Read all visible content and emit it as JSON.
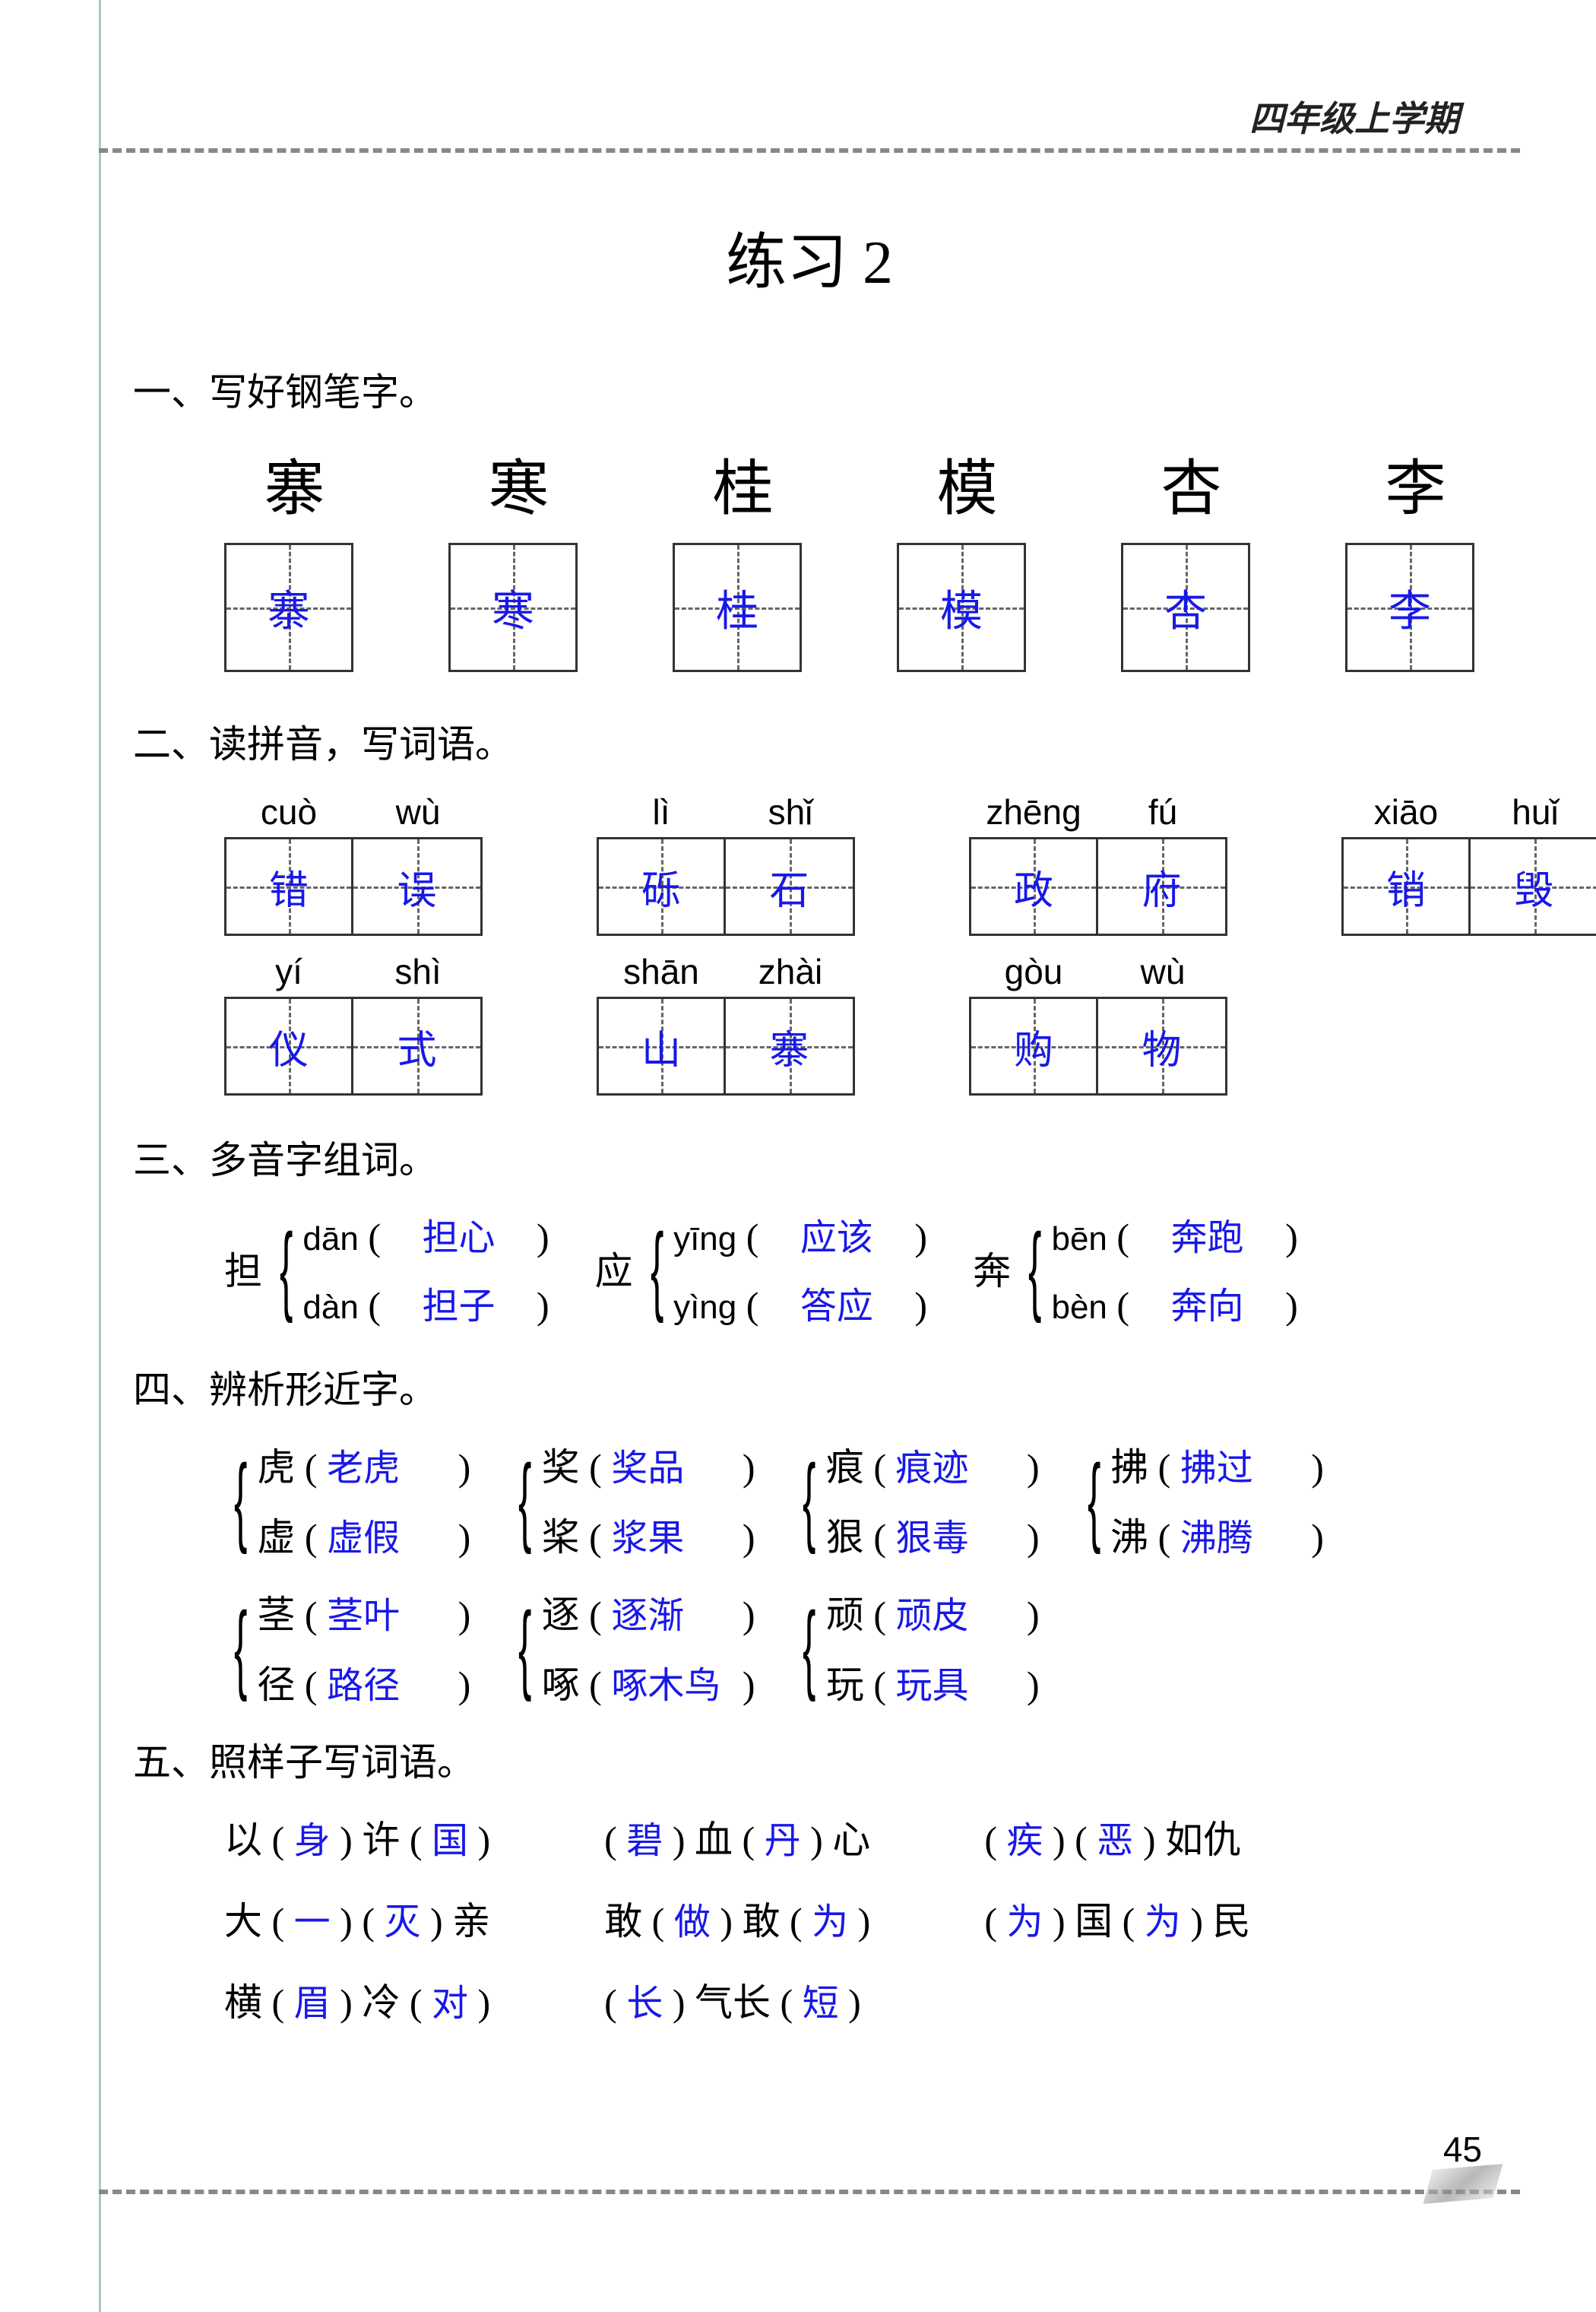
{
  "header": "四年级上学期",
  "title": "练习 2",
  "page_number": "45",
  "section1": {
    "heading": "一、写好钢笔字。",
    "items": [
      {
        "model": "寨",
        "answer": "寨"
      },
      {
        "model": "寒",
        "answer": "寒"
      },
      {
        "model": "桂",
        "answer": "桂"
      },
      {
        "model": "模",
        "answer": "模"
      },
      {
        "model": "杏",
        "answer": "杏"
      },
      {
        "model": "李",
        "answer": "李"
      }
    ]
  },
  "section2": {
    "heading": "二、读拼音，写词语。",
    "rows": [
      [
        {
          "pinyin": [
            "cuò",
            "wù"
          ],
          "chars": [
            "错",
            "误"
          ]
        },
        {
          "pinyin": [
            "lì",
            "shǐ"
          ],
          "chars": [
            "砾",
            "石"
          ]
        },
        {
          "pinyin": [
            "zhēng",
            "fú"
          ],
          "chars": [
            "政",
            "府"
          ]
        },
        {
          "pinyin": [
            "xiāo",
            "huǐ"
          ],
          "chars": [
            "销",
            "毁"
          ]
        }
      ],
      [
        {
          "pinyin": [
            "yí",
            "shì"
          ],
          "chars": [
            "仪",
            "式"
          ]
        },
        {
          "pinyin": [
            "shān",
            "zhài"
          ],
          "chars": [
            "山",
            "寨"
          ]
        },
        {
          "pinyin": [
            "gòu",
            "wù"
          ],
          "chars": [
            "购",
            "物"
          ]
        }
      ]
    ]
  },
  "section3": {
    "heading": "三、多音字组词。",
    "groups": [
      {
        "head": "担",
        "lines": [
          {
            "pinyin": "dān",
            "answer": "担心"
          },
          {
            "pinyin": "dàn",
            "answer": "担子"
          }
        ]
      },
      {
        "head": "应",
        "lines": [
          {
            "pinyin": "yīng",
            "answer": "应该"
          },
          {
            "pinyin": "yìng",
            "answer": "答应"
          }
        ]
      },
      {
        "head": "奔",
        "lines": [
          {
            "pinyin": "bēn",
            "answer": "奔跑"
          },
          {
            "pinyin": "bèn",
            "answer": "奔向"
          }
        ]
      }
    ]
  },
  "section4": {
    "heading": "四、辨析形近字。",
    "rows": [
      [
        {
          "lines": [
            {
              "char": "虎",
              "answer": "老虎"
            },
            {
              "char": "虚",
              "answer": "虚假"
            }
          ]
        },
        {
          "lines": [
            {
              "char": "奖",
              "answer": "奖品"
            },
            {
              "char": "桨",
              "answer": "浆果"
            }
          ]
        },
        {
          "lines": [
            {
              "char": "痕",
              "answer": "痕迹"
            },
            {
              "char": "狠",
              "answer": "狠毒"
            }
          ]
        },
        {
          "lines": [
            {
              "char": "拂",
              "answer": "拂过"
            },
            {
              "char": "沸",
              "answer": "沸腾"
            }
          ]
        }
      ],
      [
        {
          "lines": [
            {
              "char": "茎",
              "answer": "茎叶"
            },
            {
              "char": "径",
              "answer": "路径"
            }
          ]
        },
        {
          "lines": [
            {
              "char": "逐",
              "answer": "逐渐"
            },
            {
              "char": "啄",
              "answer": "啄木鸟"
            }
          ]
        },
        {
          "lines": [
            {
              "char": "顽",
              "answer": "顽皮"
            },
            {
              "char": "玩",
              "answer": "玩具"
            }
          ]
        }
      ]
    ]
  },
  "section5": {
    "heading": "五、照样子写词语。",
    "rows": [
      [
        {
          "parts": [
            {
              "t": "以 ("
            },
            {
              "a": "身"
            },
            {
              "t": " ) 许 ("
            },
            {
              "a": "国"
            },
            {
              "t": " )"
            }
          ]
        },
        {
          "parts": [
            {
              "t": "("
            },
            {
              "a": "碧"
            },
            {
              "t": " ) 血 ("
            },
            {
              "a": "丹"
            },
            {
              "t": " ) 心"
            }
          ]
        },
        {
          "parts": [
            {
              "t": "("
            },
            {
              "a": "疾"
            },
            {
              "t": " ) ("
            },
            {
              "a": "恶"
            },
            {
              "t": " ) 如仇"
            }
          ]
        }
      ],
      [
        {
          "parts": [
            {
              "t": "大 ("
            },
            {
              "a": "一"
            },
            {
              "t": " ) ("
            },
            {
              "a": "灭"
            },
            {
              "t": " ) 亲"
            }
          ]
        },
        {
          "parts": [
            {
              "t": "敢 ("
            },
            {
              "a": "做"
            },
            {
              "t": " ) 敢 ("
            },
            {
              "a": "为"
            },
            {
              "t": " )"
            }
          ]
        },
        {
          "parts": [
            {
              "t": "("
            },
            {
              "a": "为"
            },
            {
              "t": " ) 国 ("
            },
            {
              "a": "为"
            },
            {
              "t": " ) 民"
            }
          ]
        }
      ],
      [
        {
          "parts": [
            {
              "t": "横 ("
            },
            {
              "a": "眉"
            },
            {
              "t": " ) 冷 ("
            },
            {
              "a": "对"
            },
            {
              "t": " )"
            }
          ]
        },
        {
          "parts": [
            {
              "t": "("
            },
            {
              "a": "长"
            },
            {
              "t": " ) 气长 ("
            },
            {
              "a": "短"
            },
            {
              "t": " )"
            }
          ]
        }
      ]
    ]
  }
}
